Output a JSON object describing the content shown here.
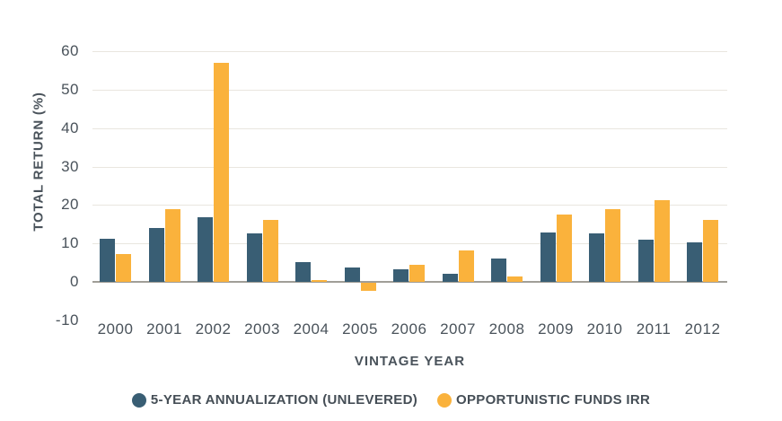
{
  "chart_data": {
    "type": "bar",
    "title": "",
    "xlabel": "VINTAGE YEAR",
    "ylabel": "TOTAL RETURN (%)",
    "categories": [
      "2000",
      "2001",
      "2002",
      "2003",
      "2004",
      "2005",
      "2006",
      "2007",
      "2008",
      "2009",
      "2010",
      "2011",
      "2012"
    ],
    "series": [
      {
        "name": "5-YEAR ANNUALIZATION (UNLEVERED)",
        "color": "#395E74",
        "values": [
          11.1,
          14.1,
          16.9,
          12.6,
          5.1,
          3.7,
          3.3,
          2.2,
          6.1,
          12.9,
          12.5,
          11.0,
          10.3
        ]
      },
      {
        "name": "OPPORTUNISTIC FUNDS IRR",
        "color": "#FAB23C",
        "values": [
          7.3,
          18.8,
          57.0,
          16.0,
          0.4,
          -2.0,
          4.4,
          8.2,
          1.3,
          17.4,
          18.9,
          21.2,
          16.0
        ]
      }
    ],
    "y_ticks": [
      60,
      50,
      40,
      30,
      20,
      10,
      0,
      -10
    ],
    "y_tick_labels": [
      "60",
      "50",
      "40",
      "30",
      "20",
      "10",
      "0",
      "-10"
    ],
    "ylim": [
      -10,
      65
    ],
    "grid": "horizontal-only",
    "gridline_values": [
      60,
      50,
      40,
      30,
      20,
      10
    ],
    "legend_position": "bottom-center"
  },
  "colors": {
    "background": "#FFFFFF",
    "gridline": "#E9E6DF",
    "axis_line": "#A09E98",
    "tick_text": "#4A535B",
    "title_text": "#454E56"
  }
}
